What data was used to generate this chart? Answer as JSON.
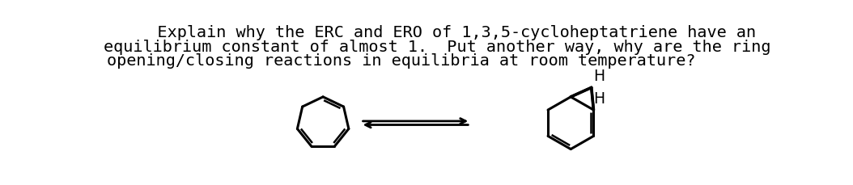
{
  "text_line1": "    Explain why the ERC and ERO of 1,3,5-cycloheptatriene have an",
  "text_line2": "equilibrium constant of almost 1.  Put another way, why are the ring",
  "text_line3": "opening/closing reactions in equilibria at room temperature?",
  "h_top": "H",
  "h_bottom": "H",
  "bg_color": "#ffffff",
  "text_color": "#000000",
  "font_size": 14.5,
  "fig_width": 10.54,
  "fig_height": 2.29,
  "dpi": 100
}
